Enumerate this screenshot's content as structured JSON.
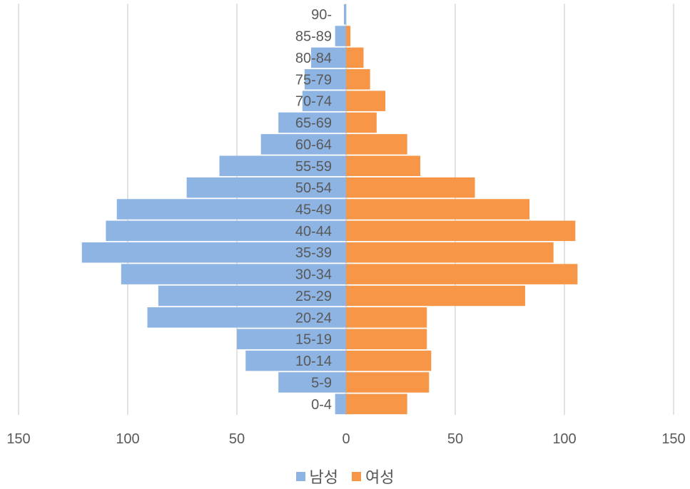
{
  "chart_data": {
    "type": "bar",
    "orientation": "horizontal-population-pyramid",
    "categories": [
      "0-4",
      "5-9",
      "10-14",
      "15-19",
      "20-24",
      "25-29",
      "30-34",
      "35-39",
      "40-44",
      "45-49",
      "50-54",
      "55-59",
      "60-64",
      "65-69",
      "70-74",
      "75-79",
      "80-84",
      "85-89",
      "90-"
    ],
    "series": [
      {
        "name": "남성",
        "color": "#8EB4E3",
        "values": [
          5,
          31,
          46,
          50,
          91,
          86,
          103,
          121,
          110,
          105,
          73,
          58,
          39,
          31,
          20,
          19,
          16,
          5,
          1
        ]
      },
      {
        "name": "여성",
        "color": "#F79646",
        "values": [
          28,
          38,
          39,
          37,
          37,
          82,
          106,
          95,
          105,
          84,
          59,
          34,
          28,
          14,
          18,
          11,
          8,
          2,
          0
        ]
      }
    ],
    "xlim": [
      -150,
      150
    ],
    "xticks": [
      -150,
      -100,
      -50,
      0,
      50,
      100,
      150
    ],
    "xtick_labels": [
      "150",
      "100",
      "50",
      "0",
      "50",
      "100",
      "150"
    ],
    "grid": "vertical",
    "legend_position": "bottom"
  }
}
